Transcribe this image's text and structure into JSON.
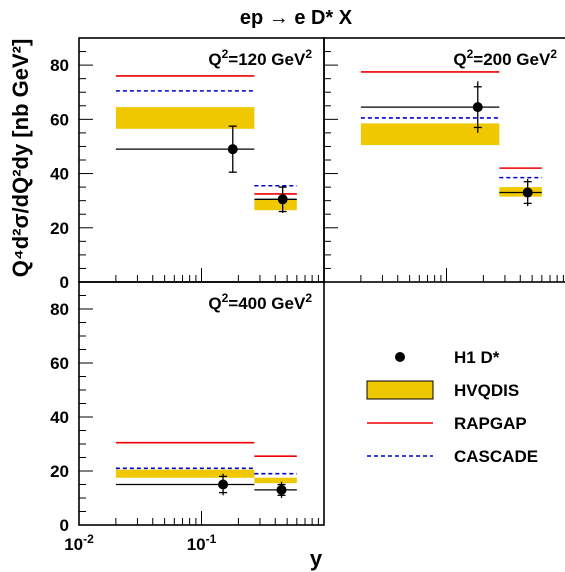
{
  "chart_data": {
    "type": "scatter",
    "title": "ep → e D* X",
    "xlabel": "y",
    "ylabel": "Q⁴d²σ/dQ²dy [nb GeV²]",
    "x_scale": "log",
    "xlim": [
      0.01,
      1.0
    ],
    "ylim": [
      0,
      90
    ],
    "x_tick_labels": [
      {
        "base": "10",
        "exp": "-2",
        "value": 0.01
      },
      {
        "base": "10",
        "exp": "-1",
        "value": 0.1
      }
    ],
    "y_ticks": [
      0,
      20,
      40,
      60,
      80
    ],
    "y_tick_labels": [
      "0",
      "20",
      "40",
      "60",
      "80"
    ],
    "colors": {
      "HVQDIS": "#f0c800",
      "RAPGAP": "#ee0000",
      "CASCADE": "#0000cc",
      "H1 D*": "#000000"
    },
    "legend": {
      "placement": "bottom-right",
      "entries": [
        "H1 D*",
        "HVQDIS",
        "RAPGAP",
        "CASCADE"
      ]
    },
    "panels": [
      {
        "label": {
          "pre": "Q",
          "sup": "2",
          "mid": "=120 GeV",
          "sup2": "2"
        },
        "bins": [
          {
            "y_range": [
              0.02,
              0.27
            ],
            "data": 49,
            "stat_err": 8.5,
            "tot_err": 8.5,
            "data_x": 0.18,
            "hvqdis": [
              56.5,
              64.5
            ],
            "rapgap": 76,
            "cascade": 70.5
          },
          {
            "y_range": [
              0.27,
              0.6
            ],
            "data": 30.5,
            "stat_err": 4.5,
            "tot_err": 5,
            "data_x": 0.46,
            "hvqdis": [
              26.5,
              30.5
            ],
            "rapgap": 32.5,
            "cascade": 35.5
          }
        ]
      },
      {
        "label": {
          "pre": "Q",
          "sup": "2",
          "mid": "=200 GeV",
          "sup2": "2"
        },
        "bins": [
          {
            "y_range": [
              0.02,
              0.27
            ],
            "data": 64.5,
            "stat_err": 7.5,
            "tot_err": 9.5,
            "data_x": 0.18,
            "hvqdis": [
              50.5,
              58.5
            ],
            "rapgap": 77.5,
            "cascade": 60.5
          },
          {
            "y_range": [
              0.27,
              0.6
            ],
            "data": 33,
            "stat_err": 4,
            "tot_err": 5,
            "data_x": 0.46,
            "hvqdis": [
              31.5,
              35
            ],
            "rapgap": 42,
            "cascade": 38.5
          }
        ]
      },
      {
        "label": {
          "pre": "Q",
          "sup": "2",
          "mid": "=400 GeV",
          "sup2": "2"
        },
        "bins": [
          {
            "y_range": [
              0.02,
              0.27
            ],
            "data": 15,
            "stat_err": 3,
            "tot_err": 4,
            "data_x": 0.15,
            "hvqdis": [
              17.5,
              20.5
            ],
            "rapgap": 30.5,
            "cascade": 21
          },
          {
            "y_range": [
              0.27,
              0.6
            ],
            "data": 13,
            "stat_err": 2,
            "tot_err": 3,
            "data_x": 0.45,
            "hvqdis": [
              15.5,
              17.5
            ],
            "rapgap": 25.5,
            "cascade": 19
          }
        ]
      }
    ]
  }
}
